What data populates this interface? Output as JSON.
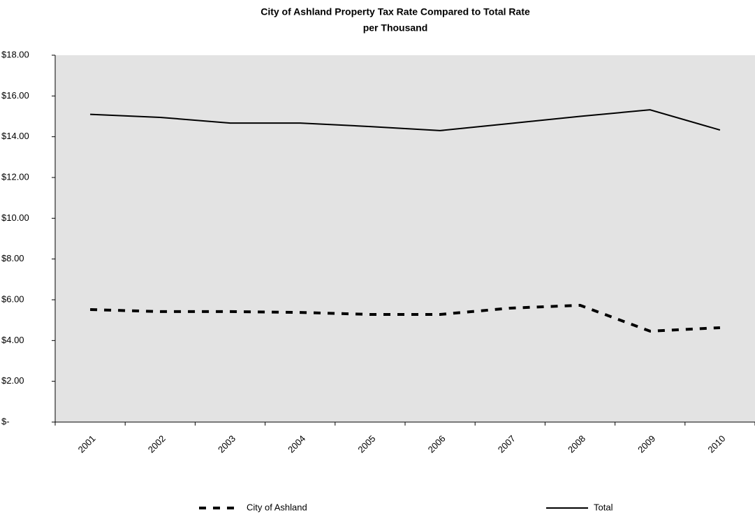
{
  "chart_data": {
    "type": "line",
    "title": "City of Ashland Property Tax Rate Compared to Total Rate",
    "subtitle": "per Thousand",
    "categories": [
      "2001",
      "2002",
      "2003",
      "2004",
      "2005",
      "2006",
      "2007",
      "2008",
      "2009",
      "2010"
    ],
    "series": [
      {
        "name": "City of Ashland",
        "color": "#000000",
        "dashed": true,
        "values": [
          5.52,
          5.42,
          5.42,
          5.38,
          5.28,
          5.28,
          5.59,
          5.73,
          4.46,
          4.63
        ]
      },
      {
        "name": "Total",
        "color": "#000000",
        "dashed": false,
        "values": [
          15.1,
          14.95,
          14.67,
          14.67,
          14.5,
          14.3,
          14.65,
          15.0,
          15.32,
          14.33
        ]
      }
    ],
    "ylim": [
      0,
      18
    ],
    "yticks": [
      {
        "value": 0,
        "label": "$-"
      },
      {
        "value": 2,
        "label": "$2.00"
      },
      {
        "value": 4,
        "label": "$4.00"
      },
      {
        "value": 6,
        "label": "$6.00"
      },
      {
        "value": 8,
        "label": "$8.00"
      },
      {
        "value": 10,
        "label": "$10.00"
      },
      {
        "value": 12,
        "label": "$12.00"
      },
      {
        "value": 14,
        "label": "$14.00"
      },
      {
        "value": 16,
        "label": "$16.00"
      },
      {
        "value": 18,
        "label": "$18.00"
      }
    ],
    "plot_background": "#e3e3e3",
    "legend": "bottom"
  }
}
